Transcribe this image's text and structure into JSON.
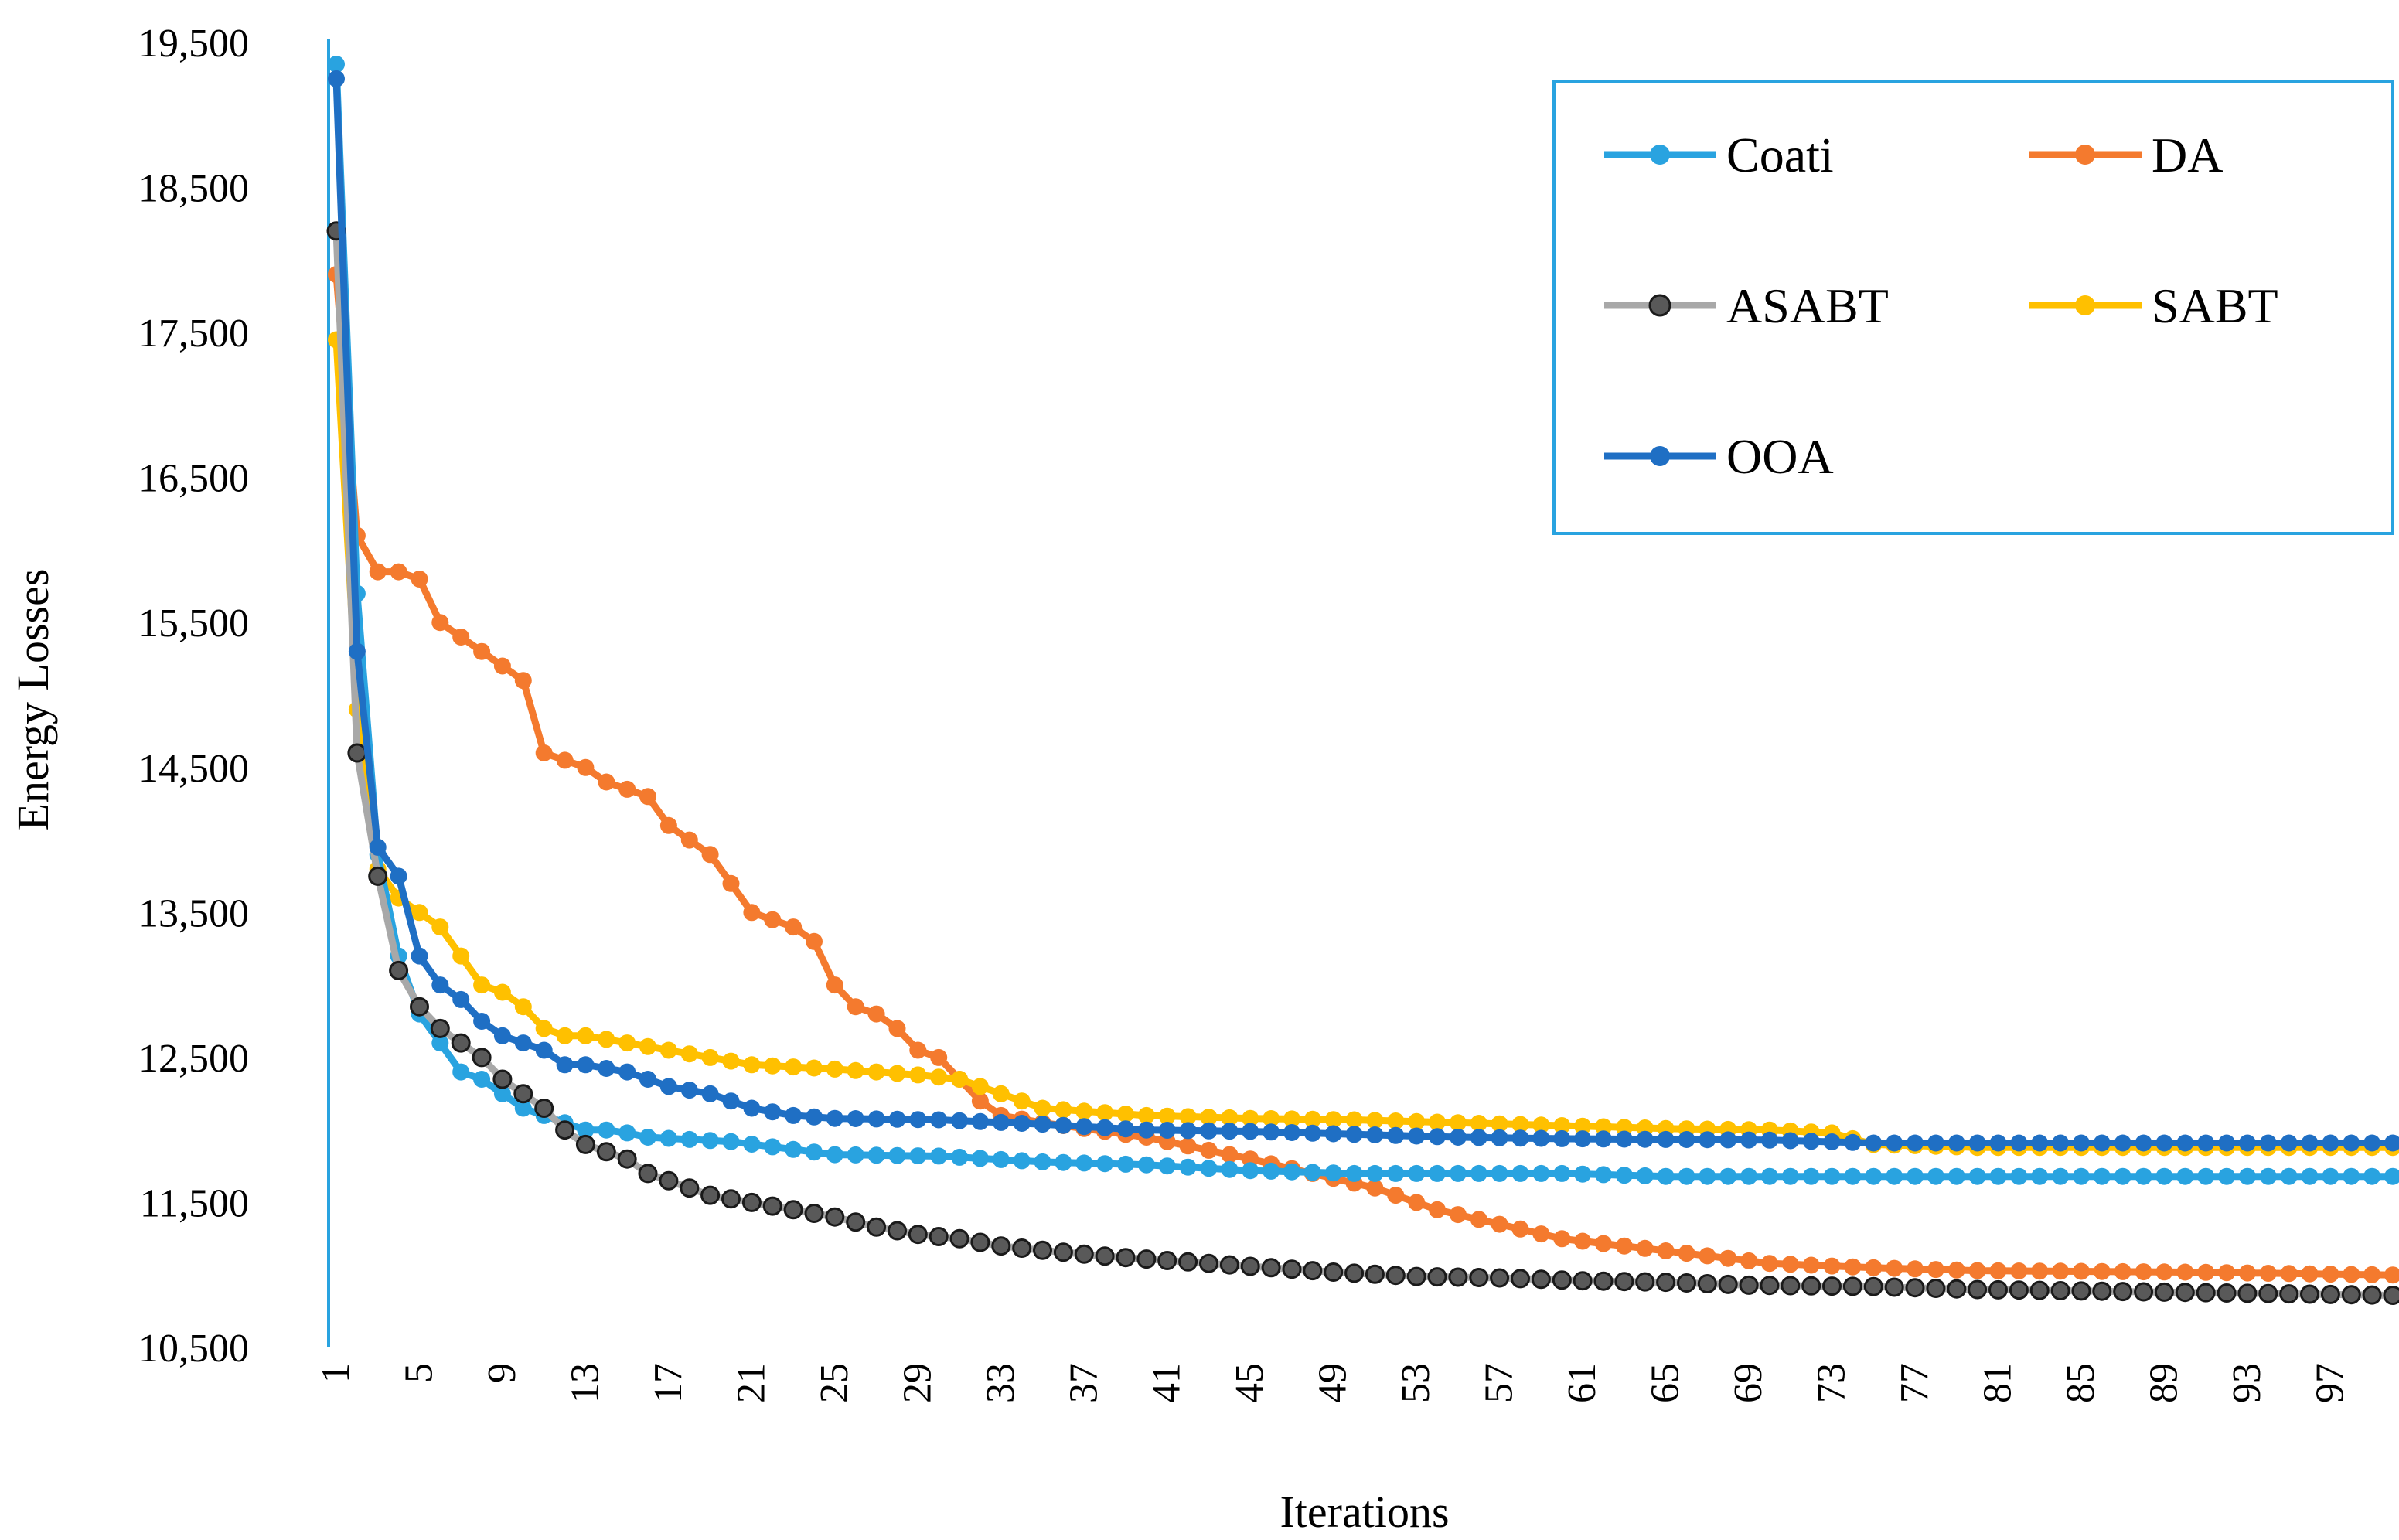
{
  "chart_data": {
    "type": "line",
    "title": "",
    "xlabel": "Iterations",
    "ylabel": "Energy Losses",
    "ylim": [
      10500,
      19500
    ],
    "xlim": [
      1,
      100
    ],
    "grid": false,
    "legend_position": "top-right",
    "y_ticks": [
      "10,500",
      "11,500",
      "12,500",
      "13,500",
      "14,500",
      "15,500",
      "16,500",
      "17,500",
      "18,500",
      "19,500"
    ],
    "x_ticks": [
      "1",
      "5",
      "9",
      "13",
      "17",
      "21",
      "25",
      "29",
      "33",
      "37",
      "41",
      "45",
      "49",
      "53",
      "57",
      "61",
      "65",
      "69",
      "73",
      "77",
      "81",
      "85",
      "89",
      "93",
      "97"
    ],
    "series": [
      {
        "name": "Coati",
        "color": "#29a3e0",
        "marker": "filled",
        "keypoints": [
          [
            1,
            19350
          ],
          [
            2,
            15700
          ],
          [
            3,
            13900
          ],
          [
            4,
            13200
          ],
          [
            5,
            12800
          ],
          [
            6,
            12600
          ],
          [
            7,
            12400
          ],
          [
            8,
            12350
          ],
          [
            9,
            12250
          ],
          [
            10,
            12150
          ],
          [
            11,
            12100
          ],
          [
            12,
            12050
          ],
          [
            13,
            12000
          ],
          [
            14,
            12000
          ],
          [
            15,
            11980
          ],
          [
            16,
            11950
          ],
          [
            20,
            11920
          ],
          [
            25,
            11830
          ],
          [
            30,
            11820
          ],
          [
            35,
            11780
          ],
          [
            40,
            11760
          ],
          [
            45,
            11720
          ],
          [
            50,
            11700
          ],
          [
            60,
            11700
          ],
          [
            65,
            11680
          ],
          [
            100,
            11680
          ]
        ]
      },
      {
        "name": "DA",
        "color": "#f47a2e",
        "marker": "filled",
        "keypoints": [
          [
            1,
            17900
          ],
          [
            2,
            16100
          ],
          [
            3,
            15850
          ],
          [
            4,
            15850
          ],
          [
            5,
            15800
          ],
          [
            6,
            15500
          ],
          [
            7,
            15400
          ],
          [
            8,
            15300
          ],
          [
            9,
            15200
          ],
          [
            10,
            15100
          ],
          [
            11,
            14600
          ],
          [
            12,
            14550
          ],
          [
            13,
            14500
          ],
          [
            14,
            14400
          ],
          [
            15,
            14350
          ],
          [
            16,
            14300
          ],
          [
            17,
            14100
          ],
          [
            18,
            14000
          ],
          [
            19,
            13900
          ],
          [
            20,
            13700
          ],
          [
            21,
            13500
          ],
          [
            22,
            13450
          ],
          [
            23,
            13400
          ],
          [
            24,
            13300
          ],
          [
            25,
            13000
          ],
          [
            26,
            12850
          ],
          [
            27,
            12800
          ],
          [
            28,
            12700
          ],
          [
            29,
            12550
          ],
          [
            30,
            12500
          ],
          [
            31,
            12350
          ],
          [
            32,
            12200
          ],
          [
            33,
            12100
          ],
          [
            35,
            12050
          ],
          [
            40,
            11950
          ],
          [
            45,
            11800
          ],
          [
            48,
            11700
          ],
          [
            51,
            11600
          ],
          [
            54,
            11450
          ],
          [
            57,
            11350
          ],
          [
            60,
            11250
          ],
          [
            63,
            11200
          ],
          [
            66,
            11150
          ],
          [
            70,
            11080
          ],
          [
            75,
            11050
          ],
          [
            80,
            11030
          ],
          [
            90,
            11020
          ],
          [
            100,
            11000
          ]
        ]
      },
      {
        "name": "ASABT",
        "color": "#a8a8a8",
        "marker": "hollow",
        "keypoints": [
          [
            1,
            18200
          ],
          [
            2,
            14600
          ],
          [
            3,
            13750
          ],
          [
            4,
            13100
          ],
          [
            5,
            12850
          ],
          [
            6,
            12700
          ],
          [
            7,
            12600
          ],
          [
            8,
            12500
          ],
          [
            9,
            12350
          ],
          [
            10,
            12250
          ],
          [
            11,
            12150
          ],
          [
            12,
            12000
          ],
          [
            13,
            11900
          ],
          [
            14,
            11850
          ],
          [
            15,
            11800
          ],
          [
            16,
            11700
          ],
          [
            17,
            11650
          ],
          [
            18,
            11600
          ],
          [
            19,
            11550
          ],
          [
            21,
            11500
          ],
          [
            23,
            11450
          ],
          [
            25,
            11400
          ],
          [
            27,
            11330
          ],
          [
            29,
            11280
          ],
          [
            31,
            11250
          ],
          [
            33,
            11200
          ],
          [
            35,
            11170
          ],
          [
            38,
            11130
          ],
          [
            41,
            11100
          ],
          [
            45,
            11060
          ],
          [
            49,
            11020
          ],
          [
            53,
            10990
          ],
          [
            57,
            10980
          ],
          [
            61,
            10960
          ],
          [
            65,
            10950
          ],
          [
            69,
            10930
          ],
          [
            75,
            10920
          ],
          [
            80,
            10900
          ],
          [
            90,
            10880
          ],
          [
            100,
            10860
          ]
        ]
      },
      {
        "name": "SABT",
        "color": "#ffc000",
        "marker": "filled",
        "keypoints": [
          [
            1,
            17450
          ],
          [
            2,
            14900
          ],
          [
            3,
            13800
          ],
          [
            4,
            13600
          ],
          [
            5,
            13500
          ],
          [
            6,
            13400
          ],
          [
            7,
            13200
          ],
          [
            8,
            13000
          ],
          [
            9,
            12950
          ],
          [
            10,
            12850
          ],
          [
            11,
            12700
          ],
          [
            12,
            12650
          ],
          [
            13,
            12650
          ],
          [
            15,
            12600
          ],
          [
            17,
            12550
          ],
          [
            19,
            12500
          ],
          [
            21,
            12450
          ],
          [
            25,
            12420
          ],
          [
            29,
            12380
          ],
          [
            31,
            12350
          ],
          [
            33,
            12250
          ],
          [
            35,
            12150
          ],
          [
            40,
            12100
          ],
          [
            45,
            12080
          ],
          [
            50,
            12070
          ],
          [
            55,
            12050
          ],
          [
            60,
            12030
          ],
          [
            65,
            12010
          ],
          [
            70,
            12000
          ],
          [
            73,
            11980
          ],
          [
            75,
            11900
          ],
          [
            80,
            11880
          ],
          [
            100,
            11880
          ]
        ]
      },
      {
        "name": "OOA",
        "color": "#1f6fc4",
        "marker": "filled",
        "keypoints": [
          [
            1,
            19250
          ],
          [
            2,
            15300
          ],
          [
            3,
            13950
          ],
          [
            4,
            13750
          ],
          [
            5,
            13200
          ],
          [
            6,
            13000
          ],
          [
            7,
            12900
          ],
          [
            8,
            12750
          ],
          [
            9,
            12650
          ],
          [
            10,
            12600
          ],
          [
            11,
            12550
          ],
          [
            12,
            12450
          ],
          [
            13,
            12450
          ],
          [
            15,
            12400
          ],
          [
            17,
            12300
          ],
          [
            19,
            12250
          ],
          [
            21,
            12150
          ],
          [
            23,
            12100
          ],
          [
            25,
            12080
          ],
          [
            30,
            12070
          ],
          [
            35,
            12040
          ],
          [
            40,
            12000
          ],
          [
            45,
            11990
          ],
          [
            50,
            11970
          ],
          [
            55,
            11950
          ],
          [
            60,
            11940
          ],
          [
            70,
            11930
          ],
          [
            75,
            11910
          ],
          [
            80,
            11910
          ],
          [
            100,
            11910
          ]
        ]
      }
    ]
  }
}
